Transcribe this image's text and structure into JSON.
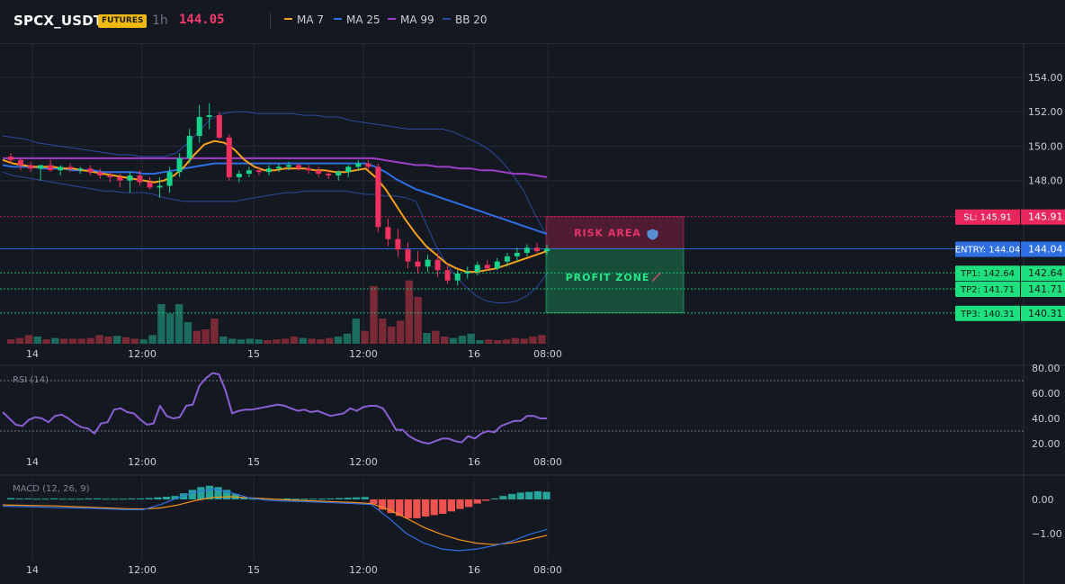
{
  "header": {
    "symbol": "SPCX_USDT",
    "badge": "FUTURES",
    "timeframe": "1h",
    "last_price": "144.05",
    "legend": [
      {
        "label": "MA 7",
        "color": "#f7a21b"
      },
      {
        "label": "MA 25",
        "color": "#2f6fe4"
      },
      {
        "label": "MA 99",
        "color": "#9c3fc6"
      },
      {
        "label": "BB 20",
        "color": "#2a4aa0"
      }
    ]
  },
  "colors": {
    "background": "#141821",
    "up": "#16d38a",
    "down": "#f0305f",
    "up_volume": "#1b6b5e",
    "down_volume": "#7a2a36",
    "sl": "#e8275f",
    "entry": "#2f6fe4",
    "tp": "#1fe07f",
    "grid": "#222836"
  },
  "x_axis": {
    "ticks": [
      "14",
      "12:00",
      "15",
      "12:00",
      "16",
      "08:00"
    ]
  },
  "chart_data": [
    {
      "type": "candlestick",
      "title": "SPCX_USDT 1h",
      "ylim": [
        139.5,
        155.5
      ],
      "y_ticks": [
        "154.00",
        "152.00",
        "150.00",
        "148.00"
      ],
      "candles": [
        [
          149.4,
          149.6,
          149.0,
          149.2
        ],
        [
          149.2,
          149.3,
          148.6,
          148.9
        ],
        [
          148.9,
          149.1,
          148.5,
          148.7
        ],
        [
          148.7,
          148.8,
          148.0,
          148.9
        ],
        [
          148.9,
          149.2,
          148.5,
          148.6
        ],
        [
          148.6,
          148.9,
          148.3,
          148.8
        ],
        [
          148.8,
          149.0,
          148.5,
          148.7
        ],
        [
          148.7,
          148.8,
          148.4,
          148.7
        ],
        [
          148.7,
          148.9,
          148.3,
          148.5
        ],
        [
          148.5,
          148.7,
          148.1,
          148.3
        ],
        [
          148.3,
          148.5,
          147.9,
          148.2
        ],
        [
          148.2,
          148.4,
          147.6,
          148.0
        ],
        [
          148.0,
          148.5,
          147.3,
          148.3
        ],
        [
          148.3,
          148.6,
          147.7,
          147.9
        ],
        [
          147.9,
          148.2,
          147.5,
          147.6
        ],
        [
          147.6,
          148.2,
          147.0,
          147.7
        ],
        [
          147.7,
          148.8,
          147.3,
          148.5
        ],
        [
          148.5,
          149.6,
          148.2,
          149.3
        ],
        [
          149.3,
          151.0,
          149.0,
          150.6
        ],
        [
          150.6,
          152.4,
          150.2,
          151.7
        ],
        [
          151.7,
          152.5,
          151.0,
          151.8
        ],
        [
          151.8,
          152.0,
          150.4,
          150.5
        ],
        [
          150.5,
          150.7,
          148.0,
          148.2
        ],
        [
          148.2,
          148.6,
          147.9,
          148.4
        ],
        [
          148.4,
          148.8,
          148.2,
          148.6
        ],
        [
          148.6,
          148.8,
          148.3,
          148.5
        ],
        [
          148.5,
          148.9,
          148.3,
          148.7
        ],
        [
          148.7,
          149.0,
          148.5,
          148.8
        ],
        [
          148.8,
          149.1,
          148.6,
          148.9
        ],
        [
          148.9,
          149.0,
          148.6,
          148.7
        ],
        [
          148.7,
          148.9,
          148.4,
          148.6
        ],
        [
          148.6,
          148.8,
          148.2,
          148.4
        ],
        [
          148.4,
          148.6,
          148.1,
          148.3
        ],
        [
          148.3,
          148.6,
          148.0,
          148.5
        ],
        [
          148.5,
          148.9,
          148.2,
          148.8
        ],
        [
          148.8,
          149.2,
          148.6,
          149.0
        ],
        [
          149.0,
          149.2,
          148.6,
          148.8
        ],
        [
          148.8,
          149.0,
          145.0,
          145.3
        ],
        [
          145.3,
          145.8,
          144.2,
          144.6
        ],
        [
          144.6,
          145.2,
          143.6,
          144.0
        ],
        [
          144.0,
          144.4,
          142.9,
          143.3
        ],
        [
          143.3,
          143.9,
          142.6,
          143.0
        ],
        [
          143.0,
          143.7,
          142.7,
          143.4
        ],
        [
          143.4,
          143.8,
          142.4,
          142.8
        ],
        [
          142.8,
          143.2,
          142.0,
          142.2
        ],
        [
          142.2,
          142.8,
          141.9,
          142.6
        ],
        [
          142.6,
          143.0,
          142.3,
          142.7
        ],
        [
          142.7,
          143.3,
          142.5,
          143.1
        ],
        [
          143.1,
          143.4,
          142.8,
          142.9
        ],
        [
          142.9,
          143.5,
          142.8,
          143.3
        ],
        [
          143.3,
          143.8,
          143.0,
          143.6
        ],
        [
          143.6,
          144.1,
          143.3,
          143.8
        ],
        [
          143.8,
          144.3,
          143.6,
          144.1
        ],
        [
          144.1,
          144.4,
          143.8,
          143.9
        ],
        [
          143.9,
          144.3,
          143.7,
          144.05
        ]
      ],
      "volume": [
        [
          0.06,
          "d"
        ],
        [
          0.08,
          "d"
        ],
        [
          0.12,
          "d"
        ],
        [
          0.1,
          "u"
        ],
        [
          0.06,
          "d"
        ],
        [
          0.08,
          "u"
        ],
        [
          0.07,
          "d"
        ],
        [
          0.07,
          "d"
        ],
        [
          0.07,
          "d"
        ],
        [
          0.08,
          "d"
        ],
        [
          0.12,
          "d"
        ],
        [
          0.1,
          "d"
        ],
        [
          0.11,
          "u"
        ],
        [
          0.09,
          "d"
        ],
        [
          0.07,
          "d"
        ],
        [
          0.06,
          "u"
        ],
        [
          0.12,
          "u"
        ],
        [
          0.55,
          "u"
        ],
        [
          0.42,
          "u"
        ],
        [
          0.55,
          "u"
        ],
        [
          0.3,
          "u"
        ],
        [
          0.18,
          "d"
        ],
        [
          0.2,
          "d"
        ],
        [
          0.35,
          "d"
        ],
        [
          0.1,
          "u"
        ],
        [
          0.07,
          "u"
        ],
        [
          0.06,
          "u"
        ],
        [
          0.07,
          "u"
        ],
        [
          0.06,
          "u"
        ],
        [
          0.05,
          "d"
        ],
        [
          0.06,
          "d"
        ],
        [
          0.07,
          "d"
        ],
        [
          0.1,
          "d"
        ],
        [
          0.08,
          "u"
        ],
        [
          0.07,
          "d"
        ],
        [
          0.06,
          "d"
        ],
        [
          0.08,
          "d"
        ],
        [
          0.1,
          "u"
        ],
        [
          0.14,
          "u"
        ],
        [
          0.35,
          "u"
        ],
        [
          0.18,
          "d"
        ],
        [
          0.8,
          "d"
        ],
        [
          0.35,
          "d"
        ],
        [
          0.24,
          "d"
        ],
        [
          0.32,
          "d"
        ],
        [
          0.88,
          "d"
        ],
        [
          0.65,
          "d"
        ],
        [
          0.15,
          "u"
        ],
        [
          0.18,
          "d"
        ],
        [
          0.1,
          "d"
        ],
        [
          0.08,
          "u"
        ],
        [
          0.11,
          "u"
        ],
        [
          0.14,
          "u"
        ],
        [
          0.05,
          "u"
        ],
        [
          0.06,
          "d"
        ],
        [
          0.05,
          "d"
        ],
        [
          0.06,
          "d"
        ],
        [
          0.08,
          "d"
        ],
        [
          0.07,
          "d"
        ],
        [
          0.1,
          "d"
        ],
        [
          0.12,
          "d"
        ]
      ],
      "ma7": [
        149.2,
        149.0,
        148.9,
        148.8,
        148.8,
        148.8,
        148.7,
        148.7,
        148.6,
        148.5,
        148.4,
        148.3,
        148.2,
        148.1,
        148.0,
        147.9,
        148.0,
        148.3,
        148.8,
        149.5,
        150.1,
        150.3,
        150.2,
        149.8,
        149.2,
        148.8,
        148.6,
        148.6,
        148.7,
        148.7,
        148.7,
        148.6,
        148.6,
        148.5,
        148.5,
        148.6,
        148.7,
        148.2,
        147.5,
        146.6,
        145.7,
        144.9,
        144.2,
        143.7,
        143.2,
        142.9,
        142.7,
        142.7,
        142.8,
        142.9,
        143.1,
        143.3,
        143.5,
        143.7,
        143.9
      ],
      "ma25": [
        148.9,
        148.8,
        148.8,
        148.8,
        148.7,
        148.7,
        148.7,
        148.6,
        148.6,
        148.6,
        148.5,
        148.5,
        148.5,
        148.5,
        148.4,
        148.4,
        148.5,
        148.6,
        148.7,
        148.8,
        148.9,
        149.0,
        149.0,
        149.0,
        149.0,
        149.0,
        149.0,
        149.0,
        149.0,
        149.0,
        149.0,
        149.0,
        149.0,
        149.0,
        149.0,
        149.0,
        149.0,
        148.8,
        148.5,
        148.1,
        147.8,
        147.5,
        147.3,
        147.1,
        146.9,
        146.7,
        146.5,
        146.3,
        146.1,
        145.9,
        145.7,
        145.5,
        145.3,
        145.1,
        144.9
      ],
      "ma99": [
        149.3,
        149.3,
        149.3,
        149.3,
        149.3,
        149.3,
        149.3,
        149.3,
        149.3,
        149.3,
        149.3,
        149.3,
        149.3,
        149.3,
        149.3,
        149.3,
        149.3,
        149.3,
        149.3,
        149.3,
        149.3,
        149.3,
        149.3,
        149.3,
        149.3,
        149.3,
        149.3,
        149.3,
        149.3,
        149.3,
        149.3,
        149.3,
        149.3,
        149.3,
        149.3,
        149.2,
        149.1,
        149.0,
        148.9,
        148.9,
        148.8,
        148.8,
        148.7,
        148.7,
        148.6,
        148.6,
        148.5,
        148.4,
        148.4,
        148.3,
        148.2
      ],
      "bb_upper": [
        150.6,
        150.5,
        150.4,
        150.2,
        150.1,
        150.0,
        149.9,
        149.8,
        149.7,
        149.6,
        149.5,
        149.5,
        149.4,
        149.4,
        149.4,
        149.6,
        150.2,
        150.9,
        151.6,
        151.9,
        152.0,
        152.0,
        151.9,
        151.9,
        151.9,
        151.9,
        151.8,
        151.8,
        151.7,
        151.7,
        151.5,
        151.4,
        151.3,
        151.2,
        151.1,
        151.0,
        151.0,
        151.0,
        151.0,
        150.8,
        150.5,
        150.2,
        149.8,
        149.2,
        148.4,
        147.4,
        146.0,
        144.8
      ],
      "bb_lower": [
        148.5,
        148.3,
        148.2,
        148.1,
        148.0,
        147.9,
        147.8,
        147.7,
        147.6,
        147.5,
        147.4,
        147.4,
        147.3,
        147.3,
        147.3,
        147.2,
        147.0,
        146.9,
        146.8,
        146.8,
        146.8,
        146.8,
        146.8,
        146.8,
        146.9,
        147.0,
        147.1,
        147.2,
        147.3,
        147.3,
        147.4,
        147.4,
        147.4,
        147.4,
        147.4,
        147.3,
        147.2,
        147.2,
        147.1,
        147.1,
        147.0,
        146.8,
        145.5,
        144.2,
        143.2,
        142.4,
        141.8,
        141.3,
        141.0,
        140.9,
        140.9,
        141.0,
        141.3,
        141.8,
        142.6
      ],
      "levels": [
        {
          "id": "sl",
          "label": "SL: 145.91",
          "value": 145.91,
          "price_tag": "145.91"
        },
        {
          "id": "entry",
          "label": "ENTRY: 144.04",
          "value": 144.04,
          "price_tag": "144.04"
        },
        {
          "id": "tp1",
          "label": "TP1: 142.64",
          "value": 142.64,
          "price_tag": "142.64"
        },
        {
          "id": "tp2",
          "label": "TP2: 141.71",
          "value": 141.71,
          "price_tag": "141.71"
        },
        {
          "id": "tp3",
          "label": "TP3: 140.31",
          "value": 140.31,
          "price_tag": "140.31"
        }
      ],
      "zones": [
        {
          "id": "risk",
          "label": "RISK AREA",
          "icon": "shield-icon",
          "from": 144.04,
          "to": 145.91
        },
        {
          "id": "profit",
          "label": "PROFIT ZONE",
          "icon": "rocket-icon",
          "from": 140.31,
          "to": 144.04
        }
      ]
    },
    {
      "type": "line",
      "title": "RSI (14)",
      "ylim": [
        10,
        80
      ],
      "y_ticks": [
        "80.00",
        "60.00",
        "40.00",
        "20.00"
      ],
      "overbought": 70,
      "oversold": 30,
      "values": [
        45,
        40,
        35,
        34,
        39,
        41,
        40,
        37,
        42,
        43,
        40,
        36,
        33,
        32,
        28,
        36,
        37,
        47,
        48,
        45,
        44,
        39,
        35,
        36,
        50,
        42,
        40,
        41,
        50,
        51,
        66,
        72,
        76,
        75,
        62,
        44,
        46,
        47,
        47,
        48,
        49,
        50,
        51,
        50,
        48,
        46,
        47,
        45,
        46,
        44,
        42,
        43,
        44,
        48,
        46,
        49,
        50,
        50,
        48,
        40,
        31,
        31,
        26,
        23,
        21,
        20,
        22,
        24,
        24,
        22,
        21,
        26,
        24,
        28,
        30,
        29,
        34,
        36,
        38,
        38,
        42,
        42,
        40,
        40
      ]
    },
    {
      "type": "histogram",
      "title": "MACD (12, 26, 9)",
      "ylim": [
        -1.7,
        0.55
      ],
      "y_ticks": [
        "0.00",
        "−1.00"
      ],
      "histogram": [
        0.04,
        0.03,
        0.03,
        0.02,
        0.02,
        0.03,
        0.02,
        0.02,
        0.02,
        0.03,
        0.03,
        0.02,
        0.02,
        0.02,
        0.03,
        0.03,
        0.04,
        0.06,
        0.08,
        0.1,
        0.18,
        0.28,
        0.36,
        0.4,
        0.36,
        0.28,
        0.16,
        0.05,
        0.02,
        0.03,
        0.02,
        0.02,
        0.03,
        0.02,
        0.02,
        0.02,
        0.02,
        0.03,
        0.04,
        0.05,
        0.06,
        0.07,
        -0.14,
        -0.3,
        -0.4,
        -0.48,
        -0.55,
        -0.55,
        -0.5,
        -0.46,
        -0.42,
        -0.35,
        -0.28,
        -0.22,
        -0.12,
        -0.04,
        0.03,
        0.1,
        0.16,
        0.2,
        0.22,
        0.24,
        0.22
      ],
      "macd": [
        -0.2,
        -0.21,
        -0.22,
        -0.24,
        -0.25,
        -0.26,
        -0.28,
        -0.3,
        -0.3,
        -0.15,
        0.05,
        0.22,
        0.3,
        0.2,
        0.05,
        -0.02,
        -0.05,
        -0.06,
        -0.08,
        -0.1,
        -0.12,
        -0.15,
        -0.55,
        -1.0,
        -1.28,
        -1.45,
        -1.5,
        -1.45,
        -1.35,
        -1.22,
        -1.02,
        -0.88
      ],
      "signal": [
        -0.16,
        -0.17,
        -0.18,
        -0.19,
        -0.21,
        -0.23,
        -0.25,
        -0.27,
        -0.28,
        -0.25,
        -0.16,
        -0.03,
        0.06,
        0.08,
        0.05,
        0.02,
        -0.01,
        -0.03,
        -0.05,
        -0.07,
        -0.09,
        -0.12,
        -0.3,
        -0.55,
        -0.82,
        -1.02,
        -1.18,
        -1.28,
        -1.32,
        -1.27,
        -1.17,
        -1.05
      ]
    }
  ]
}
